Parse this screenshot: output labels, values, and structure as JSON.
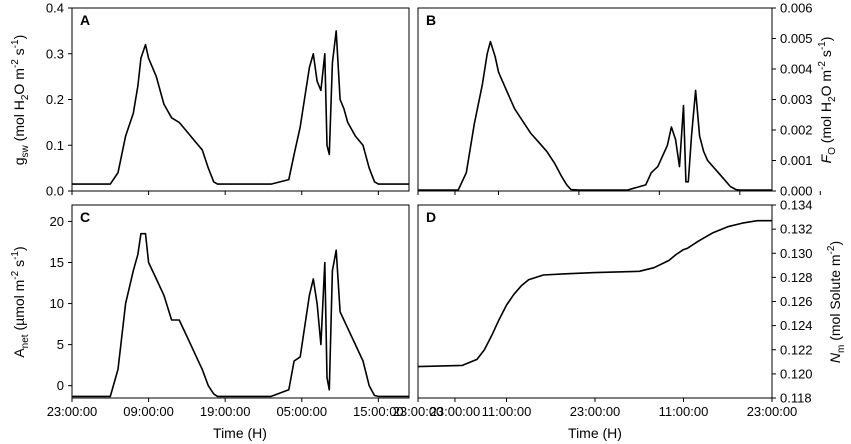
{
  "chart_data": [
    {
      "type": "line",
      "panel": "A",
      "ylim": [
        0,
        0.4
      ],
      "yticks": [
        "0.0",
        "0.1",
        "0.2",
        "0.3",
        "0.4"
      ],
      "ylabel": "gsw (mol H2O m-2 s-1)",
      "ylabel_parts": {
        "main": "g",
        "sub": "sw",
        "rest": " (mol H",
        "sub2": "2",
        "rest2": "O m",
        "sup1": "-2",
        "mid": " s",
        "sup2": "-1",
        "end": ")"
      },
      "xticks": [
        "23:00:00",
        "09:00:00",
        "19:00:00",
        "05:00:00",
        "15:00:00",
        "23:00:00"
      ],
      "xlabel": "",
      "x": [
        0,
        5,
        6,
        7,
        8,
        8.6,
        9,
        9.6,
        10,
        11,
        12,
        13,
        14,
        15,
        16,
        17,
        17.8,
        18.5,
        19,
        20,
        23,
        26,
        28.3,
        29,
        29.8,
        31,
        31.5,
        32,
        32.5,
        33,
        33.3,
        33.6,
        34,
        34.5,
        35,
        35.5,
        36,
        37,
        38,
        38.8,
        39.5,
        40,
        44
      ],
      "y": [
        0.015,
        0.015,
        0.04,
        0.12,
        0.17,
        0.23,
        0.29,
        0.32,
        0.29,
        0.25,
        0.19,
        0.16,
        0.15,
        0.13,
        0.11,
        0.09,
        0.05,
        0.02,
        0.015,
        0.015,
        0.015,
        0.015,
        0.025,
        0.08,
        0.14,
        0.27,
        0.3,
        0.24,
        0.22,
        0.3,
        0.1,
        0.08,
        0.28,
        0.35,
        0.2,
        0.18,
        0.15,
        0.12,
        0.1,
        0.05,
        0.02,
        0.015,
        0.015
      ]
    },
    {
      "type": "line",
      "panel": "B",
      "ylim": [
        0,
        0.006
      ],
      "yticks": [
        "0.000",
        "0.001",
        "0.002",
        "0.003",
        "0.004",
        "0.005",
        "0.006"
      ],
      "ylabel": "FO (mol H2O m-2 s-1)",
      "ylabel_parts": {
        "main": "F",
        "sub": "O",
        "rest": " (mol H",
        "sub2": "2",
        "rest2": "O m",
        "sup1": "-2",
        "mid": " s",
        "sup2": "-1",
        "end": ")"
      },
      "xticks": [
        "23:00:00",
        "09:00:00",
        "19:00:00",
        "05:00:00",
        "15:00:00",
        "23:00:00"
      ],
      "xlabel": "",
      "x": [
        0,
        5,
        6,
        7,
        8,
        8.6,
        9,
        9.6,
        10,
        11,
        12,
        13,
        14,
        15,
        16,
        17,
        17.8,
        18.5,
        19,
        20,
        23,
        26,
        28.3,
        29,
        29.8,
        31,
        31.5,
        32,
        32.5,
        33,
        33.3,
        33.6,
        34,
        34.5,
        35,
        35.5,
        36,
        37,
        38,
        38.8,
        39.5,
        40,
        44
      ],
      "y": [
        3e-05,
        3e-05,
        0.0006,
        0.0022,
        0.0035,
        0.0045,
        0.0049,
        0.0044,
        0.0039,
        0.0033,
        0.0027,
        0.0023,
        0.0019,
        0.0016,
        0.0013,
        0.0009,
        0.0005,
        0.0002,
        5e-05,
        3e-05,
        3e-05,
        3e-05,
        0.0002,
        0.0006,
        0.0008,
        0.0015,
        0.0021,
        0.0017,
        0.0008,
        0.0028,
        0.0003,
        0.0003,
        0.0018,
        0.0033,
        0.0018,
        0.0013,
        0.001,
        0.0007,
        0.0004,
        0.00015,
        5e-05,
        3e-05,
        3e-05
      ]
    },
    {
      "type": "line",
      "panel": "C",
      "ylim": [
        -1.5,
        22
      ],
      "yticks": [
        "0",
        "5",
        "10",
        "15",
        "20"
      ],
      "ytick_values": [
        0,
        5,
        10,
        15,
        20
      ],
      "ylabel": "Anet (µmol m-2 s-1)",
      "ylabel_parts": {
        "main": "A",
        "sub": "net",
        "rest": " (µmol m",
        "sup1": "-2",
        "mid": " s",
        "sup2": "-1",
        "end": ")"
      },
      "xticks": [
        "23:00:00",
        "09:00:00",
        "19:00:00",
        "05:00:00",
        "15:00:00",
        "23:00:00"
      ],
      "xlabel": "Time (H)",
      "x": [
        0,
        5,
        6,
        7,
        8,
        8.6,
        9,
        9.6,
        10,
        11,
        12,
        13,
        14,
        15,
        16,
        17,
        17.8,
        18.5,
        19,
        20,
        23,
        26,
        28.3,
        29,
        29.8,
        31,
        31.5,
        32,
        32.5,
        33,
        33.3,
        33.6,
        34,
        34.5,
        35,
        35.5,
        36,
        37,
        38,
        38.8,
        39.5,
        40,
        44
      ],
      "y": [
        -1.3,
        -1.3,
        2,
        10,
        14,
        16,
        18.5,
        18.5,
        15,
        13,
        11,
        8,
        8,
        6,
        4,
        2,
        0,
        -1,
        -1.3,
        -1.3,
        -1.3,
        -1.3,
        -0.5,
        3,
        3.5,
        11,
        13,
        10,
        5,
        15,
        1,
        -0.5,
        14,
        16.5,
        9,
        8,
        7,
        5,
        3,
        0,
        -1.2,
        -1.3,
        -1.3
      ]
    },
    {
      "type": "line",
      "panel": "D",
      "ylim": [
        0.118,
        0.134
      ],
      "yticks": [
        "0.118",
        "0.120",
        "0.122",
        "0.124",
        "0.126",
        "0.128",
        "0.130",
        "0.132",
        "0.134"
      ],
      "ylabel": "Nm (mol Solute m-2)",
      "ylabel_parts": {
        "main": "N",
        "sub": "m",
        "rest": " (mol Solute m",
        "sup1": "-2",
        "mid": "",
        "sup2": "",
        "end": ")"
      },
      "xticks": [
        "23:00:00",
        "11:00:00",
        "23:00:00",
        "11:00:00",
        "23:00:00"
      ],
      "xlabel": "Time (H)",
      "x": [
        0,
        6,
        8,
        9,
        10,
        11,
        12,
        13,
        14,
        15,
        17,
        20,
        24,
        30,
        32,
        34,
        35,
        36,
        36.5,
        38,
        40,
        42,
        44,
        46,
        48
      ],
      "y": [
        0.1206,
        0.1207,
        0.1212,
        0.122,
        0.1232,
        0.1245,
        0.1257,
        0.1266,
        0.1273,
        0.1278,
        0.1282,
        0.1283,
        0.1284,
        0.1285,
        0.1288,
        0.1294,
        0.1299,
        0.1303,
        0.1304,
        0.131,
        0.1317,
        0.1322,
        0.1325,
        0.1327,
        0.1327
      ]
    }
  ],
  "panels": {
    "a": {
      "letter": "A"
    },
    "b": {
      "letter": "B"
    },
    "c": {
      "letter": "C"
    },
    "d": {
      "letter": "D"
    }
  },
  "axes": {
    "bottom_left_label": "Time (H)",
    "bottom_right_label": "Time (H)"
  }
}
